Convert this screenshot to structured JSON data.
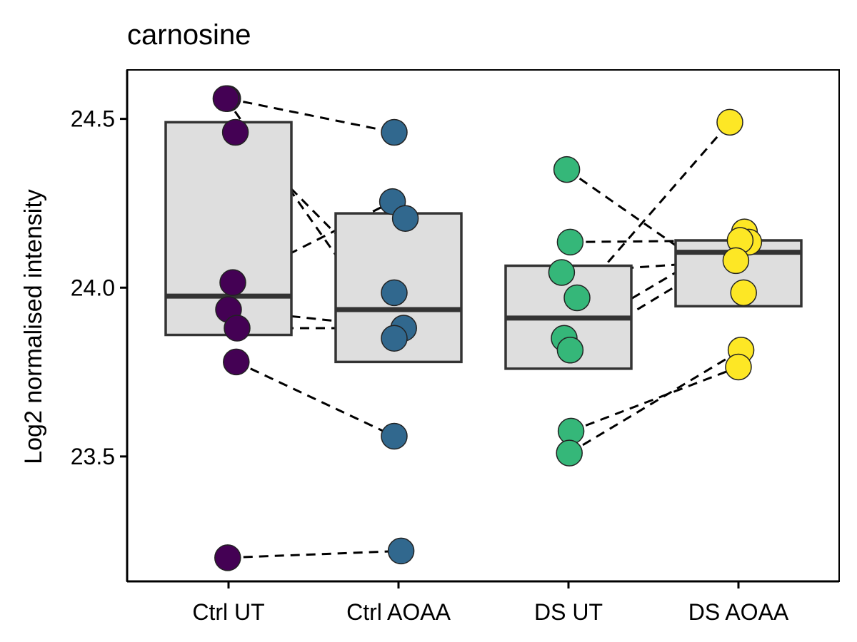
{
  "chart_data": {
    "type": "box",
    "title": "carnosine",
    "xlabel": "",
    "ylabel": "Log2 normalised intensity",
    "ylim": [
      23.13,
      24.645
    ],
    "yticks": [
      23.5,
      24.0,
      24.5
    ],
    "ytick_labels": [
      "23.5",
      "24.0",
      "24.5"
    ],
    "grid": false,
    "legend": "none",
    "categories": [
      "Ctrl UT",
      "Ctrl AOAA",
      "DS UT",
      "DS AOAA"
    ],
    "colors": [
      "#440154",
      "#31688e",
      "#35b779",
      "#fde725"
    ],
    "box_fill": "#dedede",
    "box_stroke": "#333333",
    "boxes": [
      {
        "q1": 23.86,
        "median": 23.975,
        "q3": 24.49
      },
      {
        "q1": 23.78,
        "median": 23.935,
        "q3": 24.22
      },
      {
        "q1": 23.76,
        "median": 23.91,
        "q3": 24.065
      },
      {
        "q1": 23.945,
        "median": 24.105,
        "q3": 24.14
      }
    ],
    "points": [
      [
        {
          "y": 24.56,
          "jitter": -0.01
        },
        {
          "y": 24.56,
          "jitter": -0.03
        },
        {
          "y": 24.46,
          "jitter": 0.08
        },
        {
          "y": 24.015,
          "jitter": 0.05
        },
        {
          "y": 23.935,
          "jitter": 0.0
        },
        {
          "y": 23.88,
          "jitter": 0.1
        },
        {
          "y": 23.78,
          "jitter": 0.09
        },
        {
          "y": 23.2,
          "jitter": -0.01
        }
      ],
      [
        {
          "y": 24.46,
          "jitter": -0.05
        },
        {
          "y": 24.255,
          "jitter": -0.07
        },
        {
          "y": 24.205,
          "jitter": 0.08
        },
        {
          "y": 23.985,
          "jitter": -0.05
        },
        {
          "y": 23.88,
          "jitter": 0.06
        },
        {
          "y": 23.85,
          "jitter": -0.05
        },
        {
          "y": 23.56,
          "jitter": -0.05
        },
        {
          "y": 23.22,
          "jitter": 0.03
        }
      ],
      [
        {
          "y": 24.35,
          "jitter": -0.02
        },
        {
          "y": 24.135,
          "jitter": 0.02
        },
        {
          "y": 24.045,
          "jitter": -0.08
        },
        {
          "y": 23.97,
          "jitter": 0.1
        },
        {
          "y": 23.85,
          "jitter": -0.05
        },
        {
          "y": 23.815,
          "jitter": 0.02
        },
        {
          "y": 23.575,
          "jitter": 0.03
        },
        {
          "y": 23.51,
          "jitter": 0.01
        }
      ],
      [
        {
          "y": 24.49,
          "jitter": -0.1
        },
        {
          "y": 24.165,
          "jitter": 0.07
        },
        {
          "y": 24.135,
          "jitter": 0.12
        },
        {
          "y": 24.14,
          "jitter": 0.02
        },
        {
          "y": 24.08,
          "jitter": -0.03
        },
        {
          "y": 23.985,
          "jitter": 0.06
        },
        {
          "y": 23.815,
          "jitter": 0.03
        },
        {
          "y": 23.765,
          "jitter": 0.0
        }
      ]
    ],
    "connections": [
      {
        "from": [
          0,
          0
        ],
        "to": [
          1,
          0
        ]
      },
      {
        "from": [
          0,
          1
        ],
        "to": [
          1,
          5
        ]
      },
      {
        "from": [
          0,
          2
        ],
        "to": [
          1,
          3
        ]
      },
      {
        "from": [
          0,
          3
        ],
        "to": [
          1,
          1
        ]
      },
      {
        "from": [
          0,
          4
        ],
        "to": [
          1,
          4
        ]
      },
      {
        "from": [
          0,
          5
        ],
        "to": [
          1,
          4
        ]
      },
      {
        "from": [
          0,
          6
        ],
        "to": [
          1,
          6
        ]
      },
      {
        "from": [
          0,
          7
        ],
        "to": [
          1,
          7
        ]
      },
      {
        "from": [
          2,
          0
        ],
        "to": [
          3,
          5
        ]
      },
      {
        "from": [
          2,
          1
        ],
        "to": [
          3,
          3
        ]
      },
      {
        "from": [
          2,
          2
        ],
        "to": [
          3,
          4
        ]
      },
      {
        "from": [
          2,
          3
        ],
        "to": [
          3,
          0
        ]
      },
      {
        "from": [
          2,
          4
        ],
        "to": [
          3,
          1
        ]
      },
      {
        "from": [
          2,
          5
        ],
        "to": [
          3,
          2
        ]
      },
      {
        "from": [
          2,
          6
        ],
        "to": [
          3,
          7
        ]
      },
      {
        "from": [
          2,
          7
        ],
        "to": [
          3,
          6
        ]
      }
    ]
  }
}
